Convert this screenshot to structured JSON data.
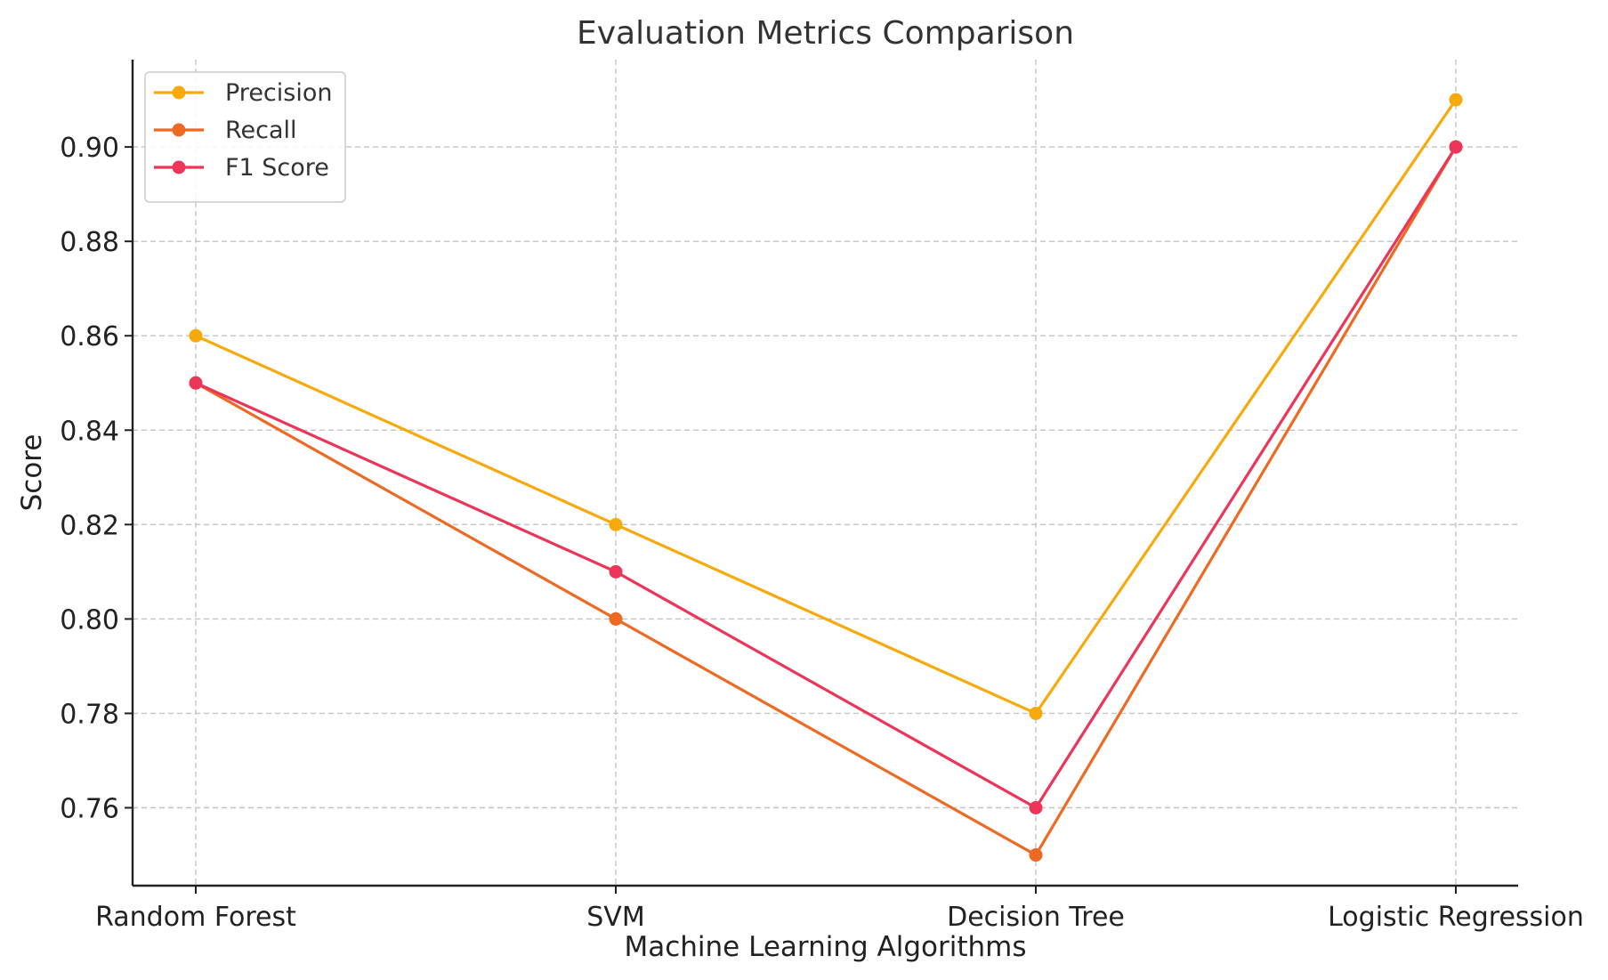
{
  "chart_data": {
    "type": "line",
    "title": "Evaluation Metrics Comparison",
    "xlabel": "Machine Learning Algorithms",
    "ylabel": "Score",
    "categories": [
      "Random Forest",
      "SVM",
      "Decision Tree",
      "Logistic Regression"
    ],
    "series": [
      {
        "name": "Precision",
        "color": "#F8AA0C",
        "values": [
          0.86,
          0.82,
          0.78,
          0.91
        ]
      },
      {
        "name": "Recall",
        "color": "#EE6A23",
        "values": [
          0.85,
          0.8,
          0.75,
          0.9
        ]
      },
      {
        "name": "F1 Score",
        "color": "#EC3559",
        "values": [
          0.85,
          0.81,
          0.76,
          0.9
        ]
      }
    ],
    "ylim": [
      0.7435,
      0.9185
    ],
    "yticks": [
      0.76,
      0.78,
      0.8,
      0.82,
      0.84,
      0.86,
      0.88,
      0.9
    ],
    "ytick_labels": [
      "0.76",
      "0.78",
      "0.80",
      "0.82",
      "0.84",
      "0.86",
      "0.88",
      "0.90"
    ],
    "grid": true,
    "legend_position": "top-left"
  }
}
